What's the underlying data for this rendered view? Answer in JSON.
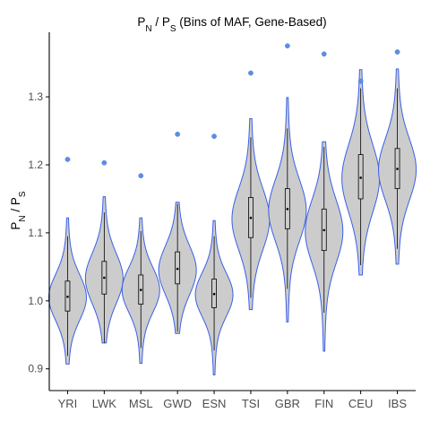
{
  "chart_data": {
    "type": "violin",
    "title": "P_N / P_S (Bins of MAF, Gene-Based)",
    "ylabel": "P_N / P_S",
    "xlabel": "",
    "ylim": [
      0.868,
      1.395
    ],
    "yticks": [
      0.9,
      1.0,
      1.1,
      1.2,
      1.3
    ],
    "ytick_labels": [
      "0.9",
      "1.0",
      "1.1",
      "1.2",
      "1.3"
    ],
    "grid": false,
    "categories": [
      "YRI",
      "LWK",
      "MSL",
      "GWD",
      "ESN",
      "TSI",
      "GBR",
      "FIN",
      "CEU",
      "IBS"
    ],
    "series": [
      {
        "category": "YRI",
        "min": 0.907,
        "max": 1.122,
        "q1": 0.985,
        "median": 1.006,
        "q3": 1.029,
        "mode": 1.005,
        "outliers": [
          1.208
        ]
      },
      {
        "category": "LWK",
        "min": 0.938,
        "max": 1.153,
        "q1": 1.01,
        "median": 1.034,
        "q3": 1.058,
        "mode": 1.033,
        "outliers": [
          1.203
        ]
      },
      {
        "category": "MSL",
        "min": 0.908,
        "max": 1.122,
        "q1": 0.995,
        "median": 1.016,
        "q3": 1.038,
        "mode": 1.016,
        "outliers": [
          1.184
        ]
      },
      {
        "category": "GWD",
        "min": 0.952,
        "max": 1.145,
        "q1": 1.025,
        "median": 1.047,
        "q3": 1.072,
        "mode": 1.045,
        "outliers": [
          1.245
        ]
      },
      {
        "category": "ESN",
        "min": 0.891,
        "max": 1.118,
        "q1": 0.99,
        "median": 1.01,
        "q3": 1.032,
        "mode": 1.009,
        "outliers": [
          1.242
        ]
      },
      {
        "category": "TSI",
        "min": 0.987,
        "max": 1.268,
        "q1": 1.093,
        "median": 1.122,
        "q3": 1.152,
        "mode": 1.12,
        "outliers": [
          1.335
        ]
      },
      {
        "category": "GBR",
        "min": 0.969,
        "max": 1.299,
        "q1": 1.106,
        "median": 1.135,
        "q3": 1.165,
        "mode": 1.133,
        "outliers": [
          1.375
        ]
      },
      {
        "category": "FIN",
        "min": 0.926,
        "max": 1.234,
        "q1": 1.074,
        "median": 1.104,
        "q3": 1.135,
        "mode": 1.102,
        "outliers": [
          1.363
        ]
      },
      {
        "category": "CEU",
        "min": 1.038,
        "max": 1.34,
        "q1": 1.15,
        "median": 1.181,
        "q3": 1.215,
        "mode": 1.18,
        "outliers": [
          1.323
        ]
      },
      {
        "category": "IBS",
        "min": 1.054,
        "max": 1.341,
        "q1": 1.165,
        "median": 1.194,
        "q3": 1.224,
        "mode": 1.193,
        "outliers": [
          1.366
        ]
      }
    ],
    "colors": {
      "violin_fill": "#cccccc",
      "violin_stroke": "#3a5fe8",
      "outlier": "#5b8fe6",
      "box": "#000000"
    }
  }
}
